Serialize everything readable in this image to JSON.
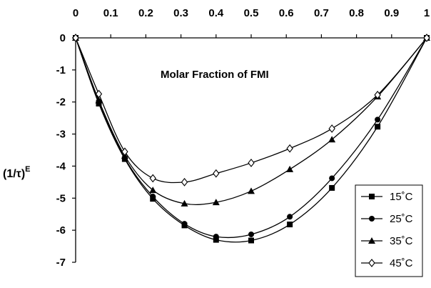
{
  "chart_data": {
    "type": "line",
    "title": "",
    "annotation": "Molar Fraction of FMI",
    "ylabel": "(1/τ)",
    "ylabel_superscript": "E",
    "xlabel": "Molar Fraction of FMI",
    "x_axis_position": "top",
    "xlim": [
      0,
      1
    ],
    "ylim": [
      -7,
      0
    ],
    "x_ticks": [
      "0",
      "0.1",
      "0.2",
      "0.3",
      "0.4",
      "0.5",
      "0.6",
      "0.7",
      "0.8",
      "0.9",
      "1"
    ],
    "y_ticks": [
      "0",
      "-1",
      "-2",
      "-3",
      "-4",
      "-5",
      "-6",
      "-7"
    ],
    "grid": false,
    "legend_position": "bottom-right",
    "series": [
      {
        "name": "15˚C",
        "marker": "square",
        "color": "#000000",
        "x": [
          0,
          0.066,
          0.14,
          0.22,
          0.31,
          0.4,
          0.5,
          0.61,
          0.73,
          0.86,
          1
        ],
        "y": [
          0,
          -2.05,
          -3.78,
          -5.02,
          -5.85,
          -6.3,
          -6.32,
          -5.82,
          -4.68,
          -2.77,
          0
        ]
      },
      {
        "name": "25˚C",
        "marker": "circle",
        "color": "#000000",
        "x": [
          0,
          0.066,
          0.14,
          0.22,
          0.31,
          0.4,
          0.5,
          0.61,
          0.73,
          0.86,
          1
        ],
        "y": [
          0,
          -1.98,
          -3.75,
          -4.95,
          -5.8,
          -6.2,
          -6.13,
          -5.58,
          -4.38,
          -2.55,
          0
        ]
      },
      {
        "name": "35˚C",
        "marker": "triangle",
        "color": "#000000",
        "x": [
          0,
          0.066,
          0.14,
          0.22,
          0.31,
          0.4,
          0.5,
          0.61,
          0.73,
          0.86,
          1
        ],
        "y": [
          0,
          -1.95,
          -3.68,
          -4.75,
          -5.17,
          -5.13,
          -4.78,
          -4.1,
          -3.17,
          -1.83,
          0
        ]
      },
      {
        "name": "45˚C",
        "marker": "diamond",
        "color": "#000000",
        "x": [
          0,
          0.066,
          0.14,
          0.22,
          0.31,
          0.4,
          0.5,
          0.61,
          0.73,
          0.86,
          1
        ],
        "y": [
          0,
          -1.75,
          -3.55,
          -4.38,
          -4.5,
          -4.23,
          -3.9,
          -3.45,
          -2.83,
          -1.78,
          0
        ]
      }
    ]
  }
}
